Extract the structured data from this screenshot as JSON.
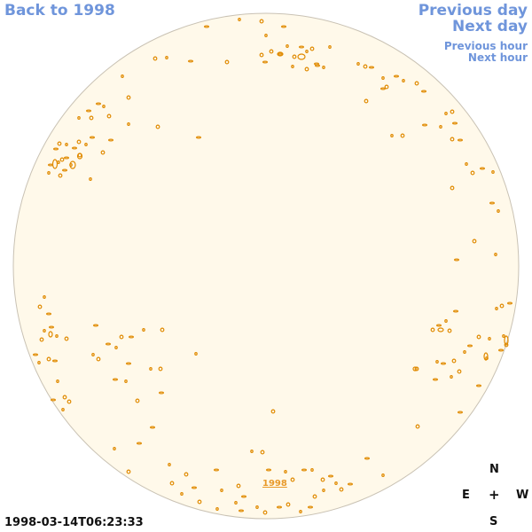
{
  "nav": {
    "back_label": "Back to 1998",
    "prev_day_label": "Previous day",
    "next_day_label": "Next day",
    "prev_hour_label": "Previous hour",
    "next_hour_label": "Next hour"
  },
  "disk": {
    "year_link_label": "1998",
    "timestamp": "1998-03-14T06:23:33"
  },
  "compass": {
    "north": "N",
    "east": "E",
    "center": "+",
    "west": "W",
    "south": "S"
  },
  "colors": {
    "disk_fill": "#fff9ea",
    "disk_border": "#c9c2b4",
    "contour": "#e08a00",
    "link": "#6f95db"
  }
}
